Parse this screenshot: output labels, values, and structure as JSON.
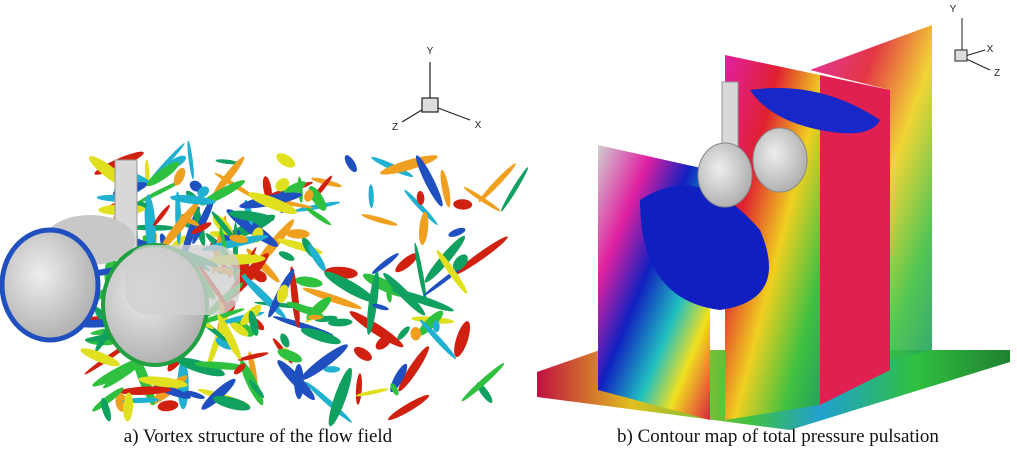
{
  "panels": [
    {
      "caption": "a) Vortex structure of the flow field",
      "axes": {
        "y": "Y",
        "z": "Z",
        "x": "X"
      }
    },
    {
      "caption": "b) Contour map of total pressure pulsation",
      "axes": {
        "y": "Y",
        "z": "Z",
        "x": "X"
      }
    }
  ]
}
